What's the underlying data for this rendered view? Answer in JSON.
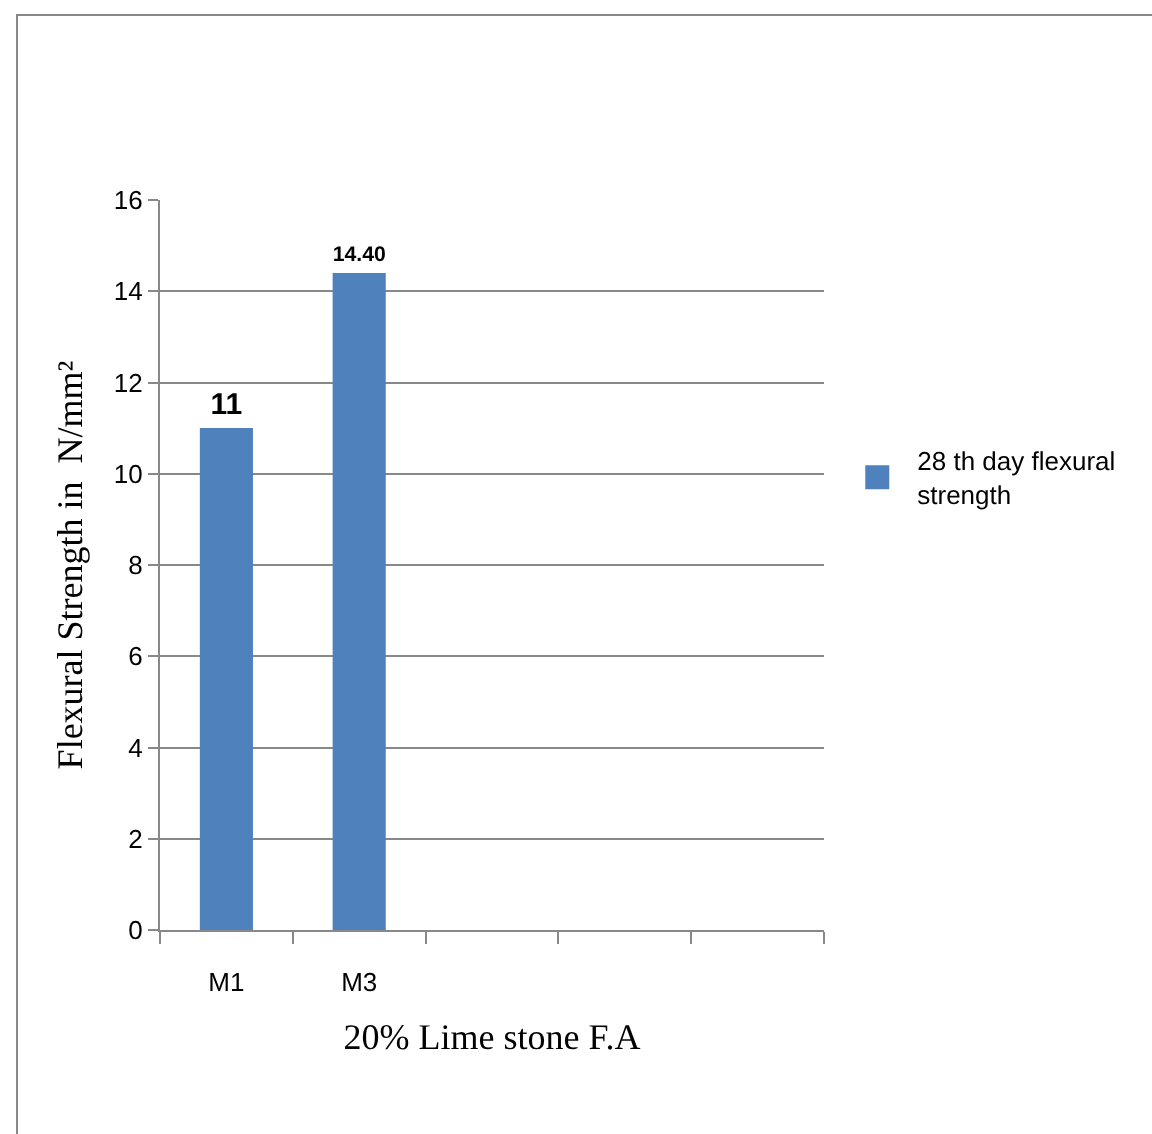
{
  "chart_data": {
    "type": "bar",
    "xlabel": "20% Lime stone F.A",
    "ylabel": "Flexural Strength in  N/mm²",
    "categories": [
      "M1",
      "M3",
      null,
      null,
      null
    ],
    "series": [
      {
        "name": "28 th day flexural strength",
        "color": "#4f81bd",
        "values": [
          11,
          14.4,
          null,
          null,
          null
        ],
        "value_labels": [
          "11",
          "14.40",
          null,
          null,
          null
        ]
      }
    ],
    "ylim": [
      0,
      16
    ],
    "yticks": [
      0,
      2,
      4,
      6,
      8,
      10,
      12,
      14,
      16
    ],
    "grid": "y",
    "legend": "right"
  }
}
